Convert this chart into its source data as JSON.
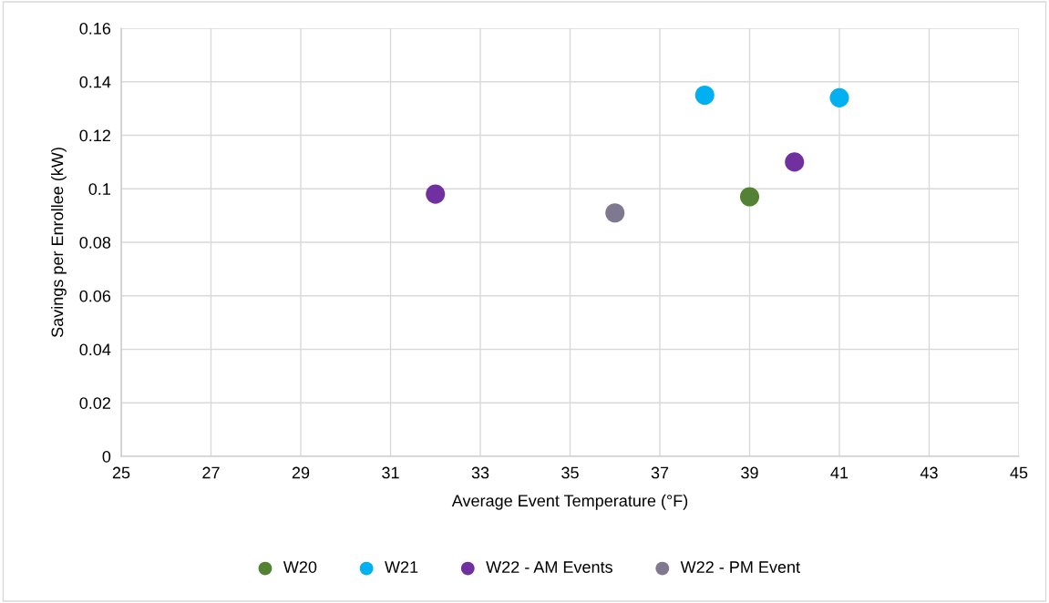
{
  "chart_data": {
    "type": "scatter",
    "xlabel": "Average Event Temperature (°F)",
    "ylabel": "Savings per Enrollee (kW)",
    "series": [
      {
        "name": "W20",
        "color": "#548235",
        "x": [
          39
        ],
        "values": [
          0.097
        ]
      },
      {
        "name": "W21",
        "color": "#00b0f0",
        "x": [
          38,
          41
        ],
        "values": [
          0.135,
          0.134
        ]
      },
      {
        "name": "W22 - AM Events",
        "color": "#7030a0",
        "x": [
          32,
          40
        ],
        "values": [
          0.098,
          0.11
        ]
      },
      {
        "name": "W22 - PM Event",
        "color": "#7f7891",
        "x": [
          36
        ],
        "values": [
          0.091
        ]
      }
    ],
    "xlim": [
      25,
      45
    ],
    "xticks": [
      25,
      27,
      29,
      31,
      33,
      35,
      37,
      39,
      41,
      43,
      45
    ],
    "ylim": [
      0,
      0.16
    ],
    "yticks": [
      {
        "value": 0,
        "label": "0"
      },
      {
        "value": 0.02,
        "label": "0.02"
      },
      {
        "value": 0.04,
        "label": "0.04"
      },
      {
        "value": 0.06,
        "label": "0.06"
      },
      {
        "value": 0.08,
        "label": "0.08"
      },
      {
        "value": 0.1,
        "label": "0.1"
      },
      {
        "value": 0.12,
        "label": "0.12"
      },
      {
        "value": 0.14,
        "label": "0.14"
      },
      {
        "value": 0.16,
        "label": "0.16"
      }
    ],
    "grid": true,
    "legend": "bottom",
    "marker": "circle"
  }
}
